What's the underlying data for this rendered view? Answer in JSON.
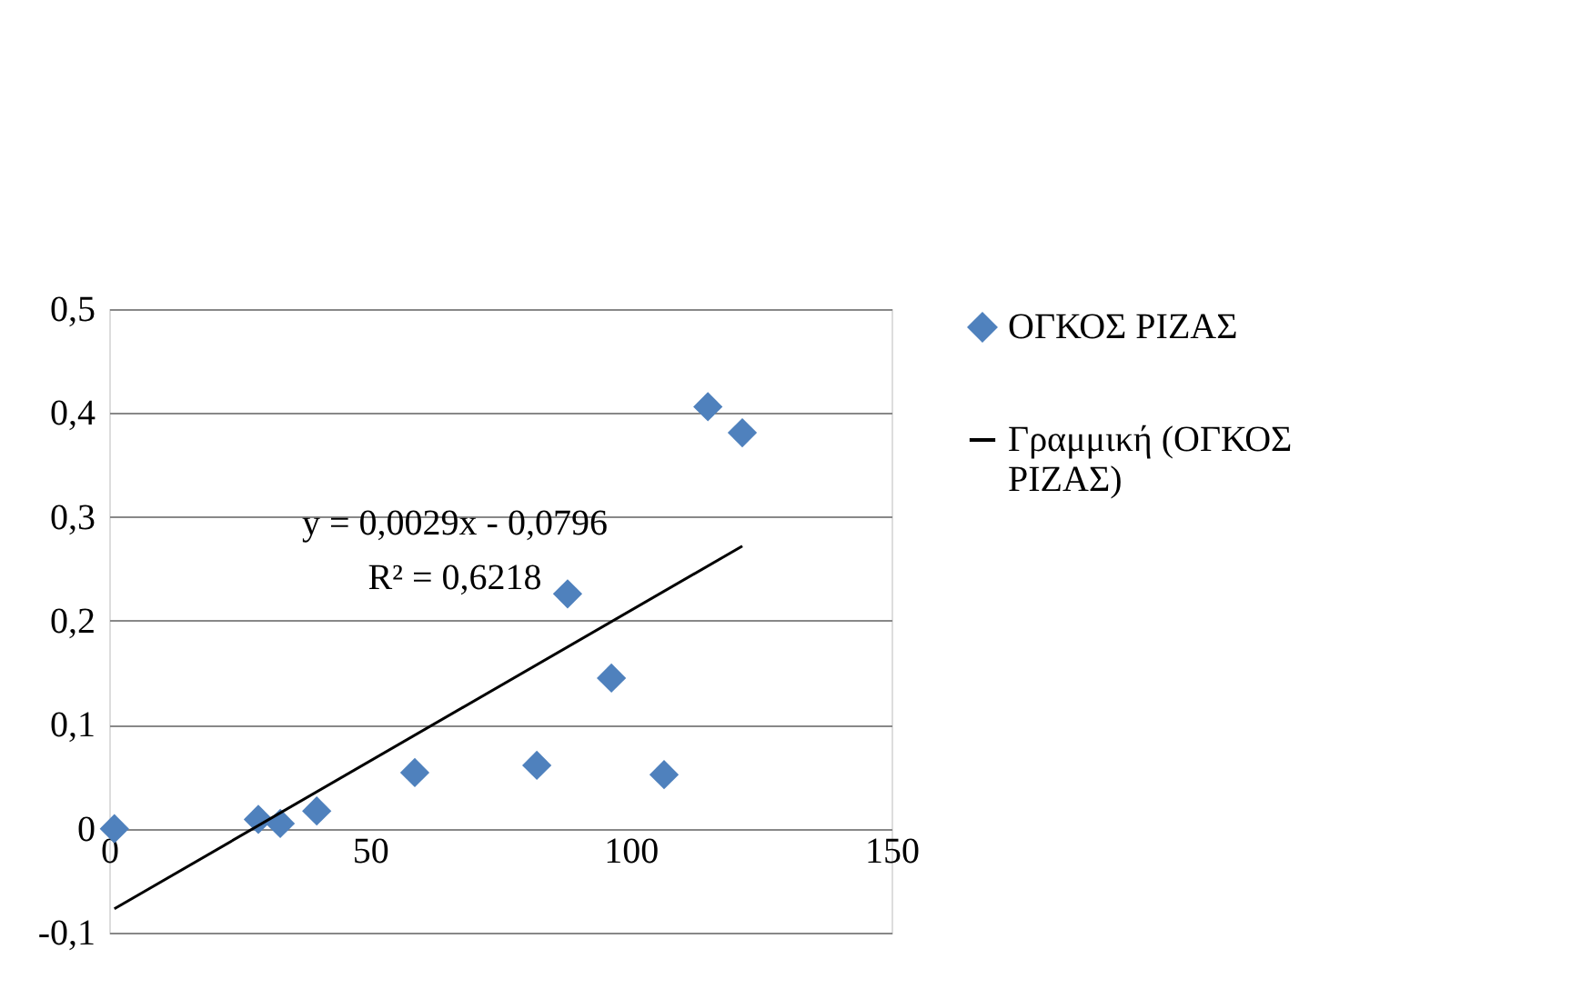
{
  "chart_data": {
    "type": "scatter",
    "x": [
      1,
      28.6,
      32.8,
      39.8,
      58.6,
      82,
      87.9,
      96.3,
      106.4,
      114.8,
      121.4
    ],
    "series": [
      {
        "name": "ΟΓΚΟΣ ΡΙΖΑΣ",
        "color": "#4f81bd",
        "marker": "diamond",
        "values": [
          0,
          0.009,
          0.005,
          0.017,
          0.054,
          0.061,
          0.226,
          0.145,
          0.052,
          0.406,
          0.381
        ]
      },
      {
        "name": "Γραμμική (ΟΓΚΟΣ ΡΙΖΑΣ)",
        "type": "line",
        "marker": "none",
        "color": "#000000",
        "x": [
          1,
          121.4
        ],
        "values": [
          -0.077,
          0.272
        ]
      }
    ],
    "annotations": [
      "y = 0,0029x - 0,0796",
      "R² = 0,6218"
    ],
    "xlim": [
      0,
      150
    ],
    "xticks": [
      0,
      50,
      100,
      150
    ],
    "ylim": [
      -0.1,
      0.5
    ],
    "yticks": [
      {
        "value": -0.1,
        "label": "-0,1"
      },
      {
        "value": 0,
        "label": "0"
      },
      {
        "value": 0.1,
        "label": "0,1"
      },
      {
        "value": 0.2,
        "label": "0,2"
      },
      {
        "value": 0.3,
        "label": "0,3"
      },
      {
        "value": 0.4,
        "label": "0,4"
      },
      {
        "value": 0.5,
        "label": "0,5"
      }
    ],
    "grid": "y",
    "legend": "right"
  }
}
